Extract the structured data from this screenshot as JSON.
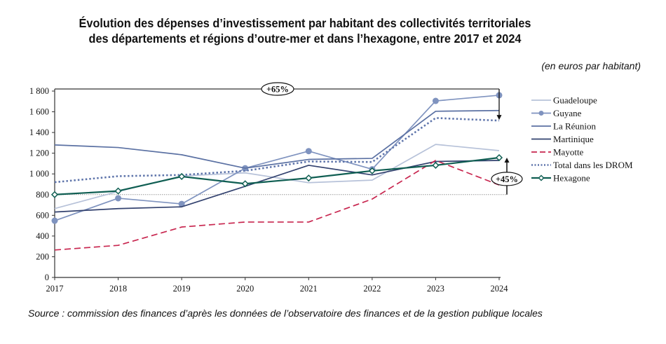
{
  "chart_data": {
    "type": "line",
    "title": "Évolution des dépenses d’investissement par habitant des collectivités territoriales des départements et régions d’outre-mer et dans l’hexagone, entre 2017 et 2024",
    "title_lines": [
      "Évolution des dépenses d’investissement par habitant des collectivités territoriales",
      "des départements et régions d’outre-mer et dans l’hexagone, entre 2017 et 2024"
    ],
    "unit_label": "(en euros par habitant)",
    "xlabel": "",
    "ylabel": "",
    "x": [
      "2017",
      "2018",
      "2019",
      "2020",
      "2021",
      "2022",
      "2023",
      "2024"
    ],
    "ylim": [
      0,
      1800
    ],
    "yticks": [
      0,
      200,
      400,
      600,
      800,
      1000,
      1200,
      1400,
      1600,
      1800
    ],
    "ytick_labels": [
      "0",
      "200",
      "400",
      "600",
      "800",
      "1 000",
      "1 200",
      "1 400",
      "1 600",
      "1 800"
    ],
    "grid": false,
    "legend_position": "right",
    "series": [
      {
        "name": "Guadeloupe",
        "color": "#b7c2d9",
        "style": "solid",
        "marker": "none",
        "values": [
          665,
          830,
          980,
          1010,
          915,
          940,
          1285,
          1225
        ]
      },
      {
        "name": "Guyane",
        "color": "#7f93bf",
        "style": "solid",
        "marker": "circle",
        "values": [
          548,
          765,
          710,
          1055,
          1220,
          1045,
          1705,
          1760
        ]
      },
      {
        "name": "La Réunion",
        "color": "#5b71a3",
        "style": "solid",
        "marker": "none",
        "values": [
          1280,
          1255,
          1185,
          1055,
          1140,
          1150,
          1605,
          1612
        ]
      },
      {
        "name": "Martinique",
        "color": "#33426f",
        "style": "solid",
        "marker": "none",
        "values": [
          632,
          665,
          682,
          880,
          1083,
          990,
          1120,
          1130
        ]
      },
      {
        "name": "Mayotte",
        "color": "#c8264f",
        "style": "dashed",
        "marker": "none",
        "values": [
          265,
          310,
          487,
          535,
          535,
          757,
          1130,
          893
        ]
      },
      {
        "name": "Total dans les DROM",
        "color": "#5f75ab",
        "style": "dotted",
        "marker": "none",
        "values": [
          920,
          978,
          990,
          1030,
          1120,
          1115,
          1540,
          1515
        ]
      },
      {
        "name": "Hexagone",
        "color": "#0f5e52",
        "style": "solid",
        "marker": "open-diamond",
        "values": [
          800,
          835,
          975,
          905,
          960,
          1030,
          1083,
          1157
        ]
      }
    ],
    "reference_line": {
      "value": 800,
      "style": "dotted"
    },
    "annotations": [
      {
        "label": "+65%",
        "type": "bracket",
        "from_x": "2017",
        "to_x": "2024",
        "level": 1800,
        "arrow_to_value": 1515
      },
      {
        "label": "+45%",
        "type": "arrow",
        "at_x": "2024",
        "from_value": 800,
        "to_value": 1157
      }
    ],
    "source": "Source : commission des finances d’après les données de l’observatoire des finances et de la gestion publique locales"
  }
}
